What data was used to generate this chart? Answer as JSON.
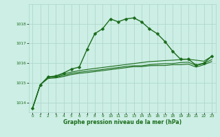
{
  "title": "Graphe pression niveau de la mer (hPa)",
  "background_color": "#cceee4",
  "line_color": "#1a6b1a",
  "grid_color": "#aad4c8",
  "xlim": [
    -0.5,
    23.5
  ],
  "ylim": [
    1013.5,
    1019.0
  ],
  "yticks": [
    1014,
    1015,
    1016,
    1017,
    1018
  ],
  "xticks": [
    0,
    1,
    2,
    3,
    4,
    5,
    6,
    7,
    8,
    9,
    10,
    11,
    12,
    13,
    14,
    15,
    16,
    17,
    18,
    19,
    20,
    21,
    22,
    23
  ],
  "series": {
    "main": [
      1013.7,
      1014.9,
      1015.3,
      1015.35,
      1015.5,
      1015.7,
      1015.8,
      1016.7,
      1017.5,
      1017.75,
      1018.25,
      1018.1,
      1018.25,
      1018.3,
      1018.1,
      1017.75,
      1017.5,
      1017.1,
      1016.6,
      1016.2,
      1016.2,
      1015.9,
      1016.0,
      1016.35
    ],
    "line2": [
      1013.7,
      1014.9,
      1015.3,
      1015.3,
      1015.45,
      1015.55,
      1015.62,
      1015.68,
      1015.73,
      1015.78,
      1015.83,
      1015.88,
      1015.93,
      1015.98,
      1016.03,
      1016.08,
      1016.1,
      1016.13,
      1016.15,
      1016.18,
      1016.2,
      1016.15,
      1016.1,
      1016.35
    ],
    "line3": [
      1013.7,
      1014.9,
      1015.28,
      1015.28,
      1015.38,
      1015.48,
      1015.54,
      1015.59,
      1015.63,
      1015.68,
      1015.73,
      1015.78,
      1015.83,
      1015.87,
      1015.87,
      1015.92,
      1015.95,
      1015.97,
      1015.98,
      1016.03,
      1016.05,
      1015.88,
      1015.98,
      1016.18
    ],
    "line4": [
      1013.7,
      1014.9,
      1015.22,
      1015.25,
      1015.32,
      1015.42,
      1015.48,
      1015.52,
      1015.57,
      1015.62,
      1015.67,
      1015.72,
      1015.77,
      1015.82,
      1015.82,
      1015.87,
      1015.88,
      1015.88,
      1015.92,
      1015.92,
      1015.95,
      1015.8,
      1015.92,
      1016.08
    ]
  },
  "marker": "D",
  "markersize": 2.5,
  "linewidth": 1.0
}
